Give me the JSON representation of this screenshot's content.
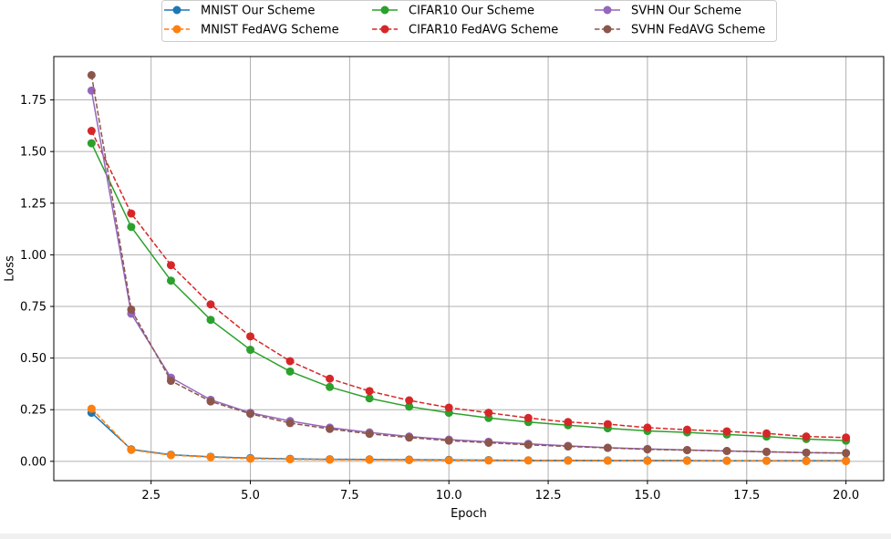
{
  "chart_data": {
    "type": "line",
    "title": "",
    "xlabel": "Epoch",
    "ylabel": "Loss",
    "xlim": [
      0.05,
      20.95
    ],
    "ylim": [
      -0.0935,
      1.96
    ],
    "xticks": [
      2.5,
      5.0,
      7.5,
      10.0,
      12.5,
      15.0,
      17.5,
      20.0
    ],
    "xtick_labels": [
      "2.5",
      "5.0",
      "7.5",
      "10.0",
      "12.5",
      "15.0",
      "17.5",
      "20.0"
    ],
    "yticks": [
      0.0,
      0.25,
      0.5,
      0.75,
      1.0,
      1.25,
      1.5,
      1.75
    ],
    "ytick_labels": [
      "0.00",
      "0.25",
      "0.50",
      "0.75",
      "1.00",
      "1.25",
      "1.50",
      "1.75"
    ],
    "grid": true,
    "legend_position": "top-center",
    "x": [
      1,
      2,
      3,
      4,
      5,
      6,
      7,
      8,
      9,
      10,
      11,
      12,
      13,
      14,
      15,
      16,
      17,
      18,
      19,
      20
    ],
    "series": [
      {
        "name": "MNIST Our Scheme",
        "color": "#1f77b4",
        "dashed": false,
        "values": [
          0.235,
          0.058,
          0.032,
          0.022,
          0.016,
          0.012,
          0.01,
          0.009,
          0.008,
          0.007,
          0.006,
          0.005,
          0.005,
          0.004,
          0.004,
          0.004,
          0.003,
          0.003,
          0.003,
          0.003
        ]
      },
      {
        "name": "MNIST FedAVG Scheme",
        "color": "#ff7f0e",
        "dashed": true,
        "values": [
          0.255,
          0.055,
          0.03,
          0.02,
          0.013,
          0.01,
          0.008,
          0.007,
          0.006,
          0.005,
          0.004,
          0.004,
          0.003,
          0.003,
          0.002,
          0.002,
          0.002,
          0.002,
          0.001,
          0.001
        ]
      },
      {
        "name": "CIFAR10 Our Scheme",
        "color": "#2ca02c",
        "dashed": false,
        "values": [
          1.54,
          1.135,
          0.875,
          0.685,
          0.54,
          0.435,
          0.36,
          0.305,
          0.265,
          0.235,
          0.21,
          0.19,
          0.175,
          0.16,
          0.147,
          0.14,
          0.13,
          0.12,
          0.108,
          0.1
        ]
      },
      {
        "name": "CIFAR10 FedAVG Scheme",
        "color": "#d62728",
        "dashed": true,
        "values": [
          1.6,
          1.2,
          0.95,
          0.76,
          0.605,
          0.485,
          0.4,
          0.34,
          0.295,
          0.26,
          0.235,
          0.21,
          0.19,
          0.18,
          0.163,
          0.153,
          0.145,
          0.135,
          0.12,
          0.115
        ]
      },
      {
        "name": "SVHN Our Scheme",
        "color": "#9467bd",
        "dashed": false,
        "values": [
          1.795,
          0.715,
          0.405,
          0.298,
          0.235,
          0.195,
          0.163,
          0.14,
          0.12,
          0.105,
          0.095,
          0.085,
          0.075,
          0.066,
          0.06,
          0.055,
          0.05,
          0.046,
          0.042,
          0.04
        ]
      },
      {
        "name": "SVHN FedAVG Scheme",
        "color": "#8c564b",
        "dashed": true,
        "values": [
          1.87,
          0.735,
          0.39,
          0.29,
          0.23,
          0.185,
          0.157,
          0.133,
          0.115,
          0.1,
          0.09,
          0.08,
          0.072,
          0.065,
          0.058,
          0.054,
          0.05,
          0.046,
          0.042,
          0.04
        ]
      }
    ]
  }
}
